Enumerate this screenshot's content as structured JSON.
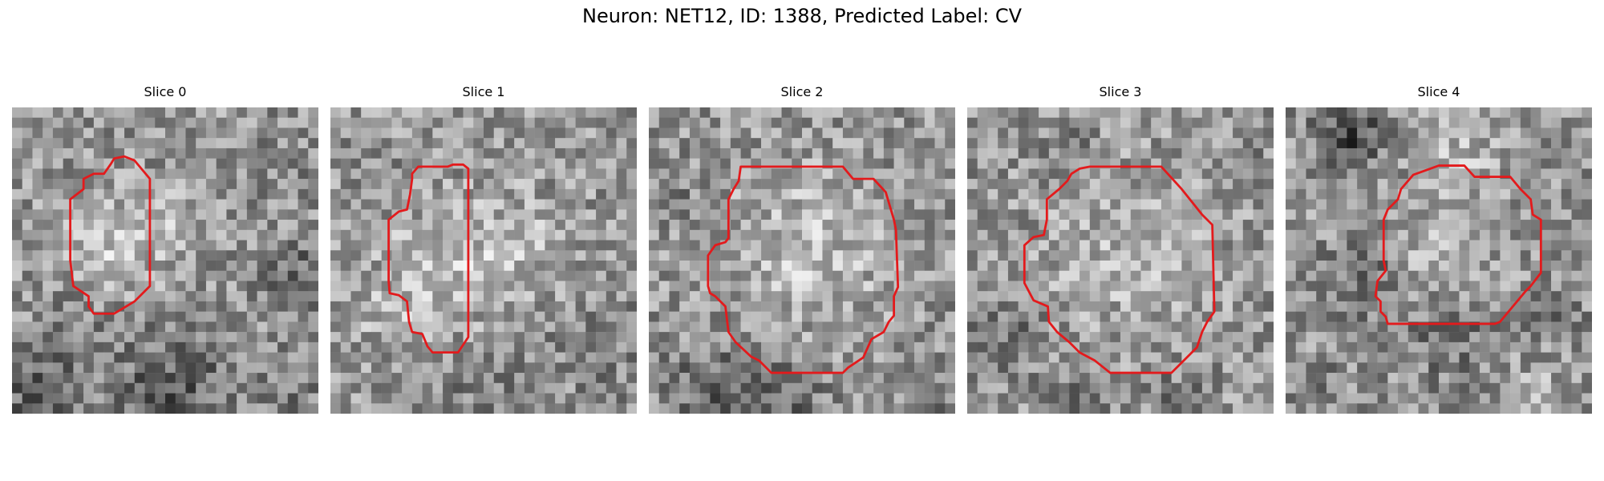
{
  "figure": {
    "title": "Neuron: NET12, ID: 1388, Predicted Label: CV",
    "slice_titles": [
      "Slice 0",
      "Slice 1",
      "Slice 2",
      "Slice 3",
      "Slice 4"
    ],
    "contour_color": "#e31a1c",
    "colormap": "gray"
  }
}
